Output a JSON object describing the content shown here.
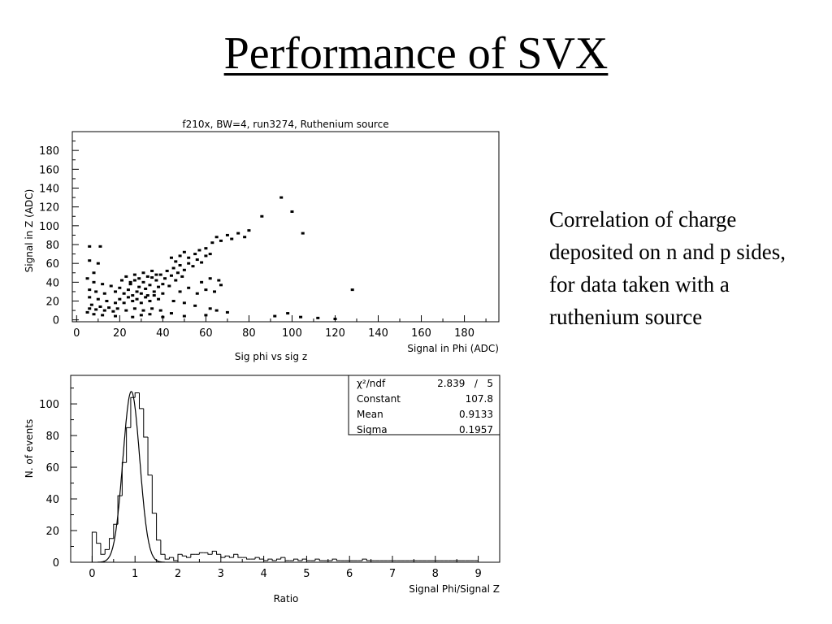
{
  "slide": {
    "title": "Performance of SVX",
    "caption": "Correlation of charge deposited on n and p sides, for data taken with a ruthenium source"
  },
  "chart_data": [
    {
      "type": "scatter",
      "title": "f210x, BW=4, run3274, Ruthenium source",
      "xlabel": "Signal in Phi (ADC)",
      "ylabel": "Signal in Z (ADC)",
      "bottom_caption": "Sig phi vs sig z",
      "xlim": [
        -2,
        196
      ],
      "ylim": [
        -2,
        200
      ],
      "x_ticks": [
        0,
        20,
        40,
        60,
        80,
        100,
        120,
        140,
        160,
        180
      ],
      "y_ticks": [
        0,
        20,
        40,
        60,
        80,
        100,
        120,
        140,
        160,
        180
      ],
      "grid": false,
      "points": [
        [
          6,
          78
        ],
        [
          11,
          78
        ],
        [
          6,
          63
        ],
        [
          10,
          60
        ],
        [
          8,
          50
        ],
        [
          5,
          44
        ],
        [
          8,
          40
        ],
        [
          12,
          38
        ],
        [
          16,
          36
        ],
        [
          6,
          32
        ],
        [
          9,
          30
        ],
        [
          13,
          28
        ],
        [
          6,
          24
        ],
        [
          10,
          22
        ],
        [
          14,
          20
        ],
        [
          18,
          18
        ],
        [
          7,
          16
        ],
        [
          11,
          14
        ],
        [
          15,
          13
        ],
        [
          6,
          12
        ],
        [
          9,
          11
        ],
        [
          13,
          10
        ],
        [
          17,
          9
        ],
        [
          5,
          8
        ],
        [
          8,
          6
        ],
        [
          12,
          5
        ],
        [
          18,
          30
        ],
        [
          20,
          34
        ],
        [
          22,
          28
        ],
        [
          24,
          32
        ],
        [
          25,
          38
        ],
        [
          26,
          26
        ],
        [
          27,
          42
        ],
        [
          28,
          30
        ],
        [
          29,
          35
        ],
        [
          30,
          28
        ],
        [
          31,
          40
        ],
        [
          32,
          33
        ],
        [
          33,
          26
        ],
        [
          34,
          37
        ],
        [
          35,
          45
        ],
        [
          36,
          30
        ],
        [
          37,
          42
        ],
        [
          38,
          35
        ],
        [
          39,
          48
        ],
        [
          40,
          38
        ],
        [
          41,
          44
        ],
        [
          42,
          52
        ],
        [
          43,
          36
        ],
        [
          44,
          47
        ],
        [
          45,
          55
        ],
        [
          46,
          42
        ],
        [
          47,
          50
        ],
        [
          48,
          58
        ],
        [
          49,
          46
        ],
        [
          50,
          53
        ],
        [
          52,
          60
        ],
        [
          54,
          57
        ],
        [
          56,
          64
        ],
        [
          58,
          61
        ],
        [
          60,
          68
        ],
        [
          62,
          70
        ],
        [
          20,
          22
        ],
        [
          22,
          18
        ],
        [
          24,
          24
        ],
        [
          26,
          20
        ],
        [
          28,
          22
        ],
        [
          30,
          18
        ],
        [
          32,
          24
        ],
        [
          34,
          20
        ],
        [
          36,
          26
        ],
        [
          38,
          22
        ],
        [
          40,
          28
        ],
        [
          21,
          42
        ],
        [
          23,
          46
        ],
        [
          25,
          40
        ],
        [
          27,
          48
        ],
        [
          29,
          44
        ],
        [
          31,
          50
        ],
        [
          33,
          46
        ],
        [
          35,
          52
        ],
        [
          37,
          48
        ],
        [
          19,
          12
        ],
        [
          23,
          10
        ],
        [
          27,
          12
        ],
        [
          31,
          10
        ],
        [
          35,
          12
        ],
        [
          39,
          10
        ],
        [
          44,
          66
        ],
        [
          46,
          62
        ],
        [
          48,
          68
        ],
        [
          50,
          72
        ],
        [
          52,
          66
        ],
        [
          55,
          70
        ],
        [
          57,
          74
        ],
        [
          60,
          76
        ],
        [
          63,
          82
        ],
        [
          65,
          88
        ],
        [
          67,
          84
        ],
        [
          70,
          90
        ],
        [
          72,
          86
        ],
        [
          75,
          92
        ],
        [
          78,
          88
        ],
        [
          80,
          95
        ],
        [
          86,
          110
        ],
        [
          95,
          130
        ],
        [
          100,
          115
        ],
        [
          105,
          92
        ],
        [
          128,
          32
        ],
        [
          48,
          30
        ],
        [
          52,
          34
        ],
        [
          56,
          28
        ],
        [
          60,
          32
        ],
        [
          64,
          30
        ],
        [
          67,
          37
        ],
        [
          45,
          20
        ],
        [
          50,
          18
        ],
        [
          55,
          15
        ],
        [
          62,
          12
        ],
        [
          65,
          10
        ],
        [
          70,
          8
        ],
        [
          58,
          40
        ],
        [
          62,
          44
        ],
        [
          66,
          42
        ],
        [
          92,
          4
        ],
        [
          98,
          7
        ],
        [
          104,
          3
        ],
        [
          112,
          2
        ],
        [
          120,
          1
        ],
        [
          30,
          5
        ],
        [
          40,
          3
        ],
        [
          50,
          4
        ],
        [
          60,
          5
        ],
        [
          18,
          4
        ],
        [
          26,
          3
        ],
        [
          34,
          6
        ],
        [
          44,
          7
        ]
      ]
    },
    {
      "type": "histogram",
      "title": "",
      "xlabel": "Signal Phi/Signal Z",
      "ylabel": "N. of events",
      "bottom_caption": "Ratio",
      "xlim": [
        -0.5,
        9.5
      ],
      "ylim": [
        0,
        118
      ],
      "x_ticks": [
        0,
        1,
        2,
        3,
        4,
        5,
        6,
        7,
        8,
        9
      ],
      "y_ticks": [
        0,
        20,
        40,
        60,
        80,
        100
      ],
      "bin_width": 0.1,
      "x_start": 0,
      "counts": [
        19,
        12,
        5,
        8,
        15,
        24,
        42,
        63,
        85,
        104,
        107,
        97,
        79,
        55,
        31,
        14,
        5,
        2,
        3,
        1,
        5,
        4,
        3,
        5,
        5,
        6,
        6,
        5,
        7,
        5,
        3,
        4,
        3,
        5,
        3,
        3,
        2,
        2,
        3,
        2,
        1,
        2,
        1,
        2,
        3,
        1,
        1,
        2,
        1,
        2,
        1,
        1,
        2,
        1,
        1,
        1,
        2,
        1,
        1,
        1,
        1,
        1,
        1,
        2,
        1,
        1,
        1,
        1,
        1,
        1,
        1,
        1,
        1,
        1,
        1,
        1,
        1,
        1,
        1,
        1,
        1,
        1,
        1,
        1,
        1,
        1,
        1,
        1,
        1,
        1
      ],
      "fit": {
        "type": "gaussian",
        "constant": 107.8,
        "mean": 0.9133,
        "sigma": 0.1957
      },
      "stats_box": {
        "rows": [
          {
            "label": "χ²/ndf",
            "value": "2.839   /   5"
          },
          {
            "label": "Constant",
            "value": "107.8"
          },
          {
            "label": "Mean",
            "value": "0.9133"
          },
          {
            "label": "Sigma",
            "value": "0.1957"
          }
        ]
      }
    }
  ]
}
